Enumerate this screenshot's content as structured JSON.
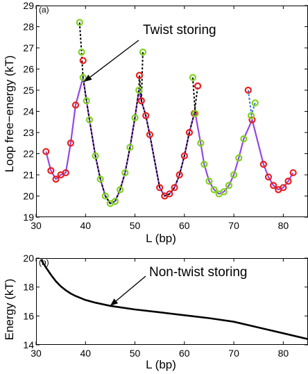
{
  "chart_data": [
    {
      "type": "line",
      "panel_label": "(a)",
      "xlabel": "L (bp)",
      "ylabel": "Loop free−energy (kT)",
      "xlim": [
        30,
        85
      ],
      "ylim": [
        19,
        29
      ],
      "xticks": [
        30,
        40,
        50,
        60,
        70,
        80
      ],
      "yticks": [
        19,
        20,
        21,
        22,
        23,
        24,
        25,
        26,
        27,
        28,
        29
      ],
      "grid": false,
      "annotation": {
        "text": "Twist storing",
        "x": 39.7,
        "y": 25.4
      },
      "colors": {
        "red_markers": "#e8201c",
        "green_markers": "#7ed321",
        "purple_line": "#9448e0",
        "dashed_black": "#000000",
        "dashed_blue": "#2f6fd8"
      },
      "series": [
        {
          "marker": "red-circle",
          "x": [
            32,
            33,
            34,
            35,
            36,
            37,
            38,
            39.5,
            50.9,
            51.3,
            52.2,
            53,
            55,
            56,
            57,
            58,
            59,
            60,
            61,
            62,
            62.7,
            72.9,
            73.7,
            76,
            77,
            78,
            79,
            80,
            81,
            82
          ],
          "y": [
            22.1,
            21.2,
            20.8,
            21.0,
            21.1,
            22.5,
            24.3,
            26.4,
            25.7,
            24.5,
            23.8,
            22.9,
            20.4,
            20.0,
            20.1,
            20.4,
            21.0,
            21.9,
            23.0,
            23.9,
            25.2,
            25.0,
            23.6,
            21.5,
            20.9,
            20.5,
            20.3,
            20.4,
            20.7,
            21.1
          ]
        },
        {
          "marker": "green-circle",
          "x": [
            38.8,
            39.2,
            39.5,
            40.2,
            40.8,
            42,
            43,
            44,
            45,
            46,
            47,
            48,
            49,
            50,
            50.8,
            51.6,
            61.7,
            62.2,
            63.3,
            64,
            65,
            66,
            67,
            68,
            69,
            70,
            71,
            72,
            73.5,
            74.3
          ],
          "y": [
            28.2,
            26.8,
            25.6,
            24.5,
            23.6,
            21.9,
            20.8,
            20.0,
            19.65,
            19.75,
            20.3,
            21.1,
            22.3,
            23.7,
            25.0,
            26.8,
            25.6,
            23.9,
            22.5,
            21.5,
            20.7,
            20.3,
            20.1,
            20.2,
            20.5,
            21.0,
            21.8,
            22.7,
            23.8,
            24.4
          ]
        },
        {
          "style": "solid",
          "color": "purple",
          "x": [
            32,
            33,
            34,
            35,
            36,
            37,
            38,
            39.5,
            40.2,
            40.8,
            42,
            43,
            44,
            45,
            46,
            47,
            48,
            49,
            50,
            50.8,
            51.3,
            52.2,
            53,
            55,
            56,
            57,
            58,
            59,
            60,
            61,
            62,
            62.2,
            63.3,
            64,
            65,
            66,
            67,
            68,
            69,
            70,
            71,
            72,
            73.7,
            76,
            77,
            78,
            79,
            80,
            81,
            82
          ],
          "y": [
            22.1,
            21.2,
            20.8,
            21.0,
            21.1,
            22.5,
            24.3,
            25.6,
            24.5,
            23.6,
            21.9,
            20.8,
            20.0,
            19.65,
            19.75,
            20.3,
            21.1,
            22.3,
            23.7,
            25.0,
            24.5,
            23.8,
            22.9,
            20.4,
            20.0,
            20.1,
            20.4,
            21.0,
            21.9,
            23.0,
            23.9,
            23.9,
            22.5,
            21.5,
            20.7,
            20.3,
            20.1,
            20.2,
            20.5,
            21.0,
            21.8,
            22.7,
            23.6,
            21.5,
            20.9,
            20.5,
            20.3,
            20.4,
            20.7,
            21.1
          ]
        },
        {
          "style": "dashed",
          "color": "black",
          "x": [
            38.8,
            39.2,
            39.5,
            40.2,
            40.8,
            42,
            43,
            44,
            45,
            46,
            47,
            48,
            49,
            50,
            50.8,
            50.9,
            51.3,
            52.2,
            53,
            55,
            56,
            57,
            58,
            59,
            60,
            61,
            62,
            62.7
          ],
          "y": [
            28.2,
            26.8,
            25.6,
            24.5,
            23.6,
            21.9,
            20.8,
            20.0,
            19.65,
            19.75,
            20.3,
            21.1,
            22.3,
            23.7,
            25.0,
            25.7,
            24.5,
            23.8,
            22.9,
            20.4,
            20.0,
            20.1,
            20.4,
            21.0,
            21.9,
            23.0,
            23.9,
            25.2
          ]
        },
        {
          "style": "dashed",
          "color": "black",
          "x": [
            51.6,
            51.3
          ],
          "y": [
            26.8,
            24.5
          ]
        },
        {
          "style": "dashed",
          "color": "black",
          "x": [
            61.7,
            62.2
          ],
          "y": [
            25.6,
            23.9
          ]
        },
        {
          "style": "dashed",
          "color": "blue",
          "x": [
            72.9,
            73.7
          ],
          "y": [
            25.0,
            23.6
          ]
        },
        {
          "style": "dashed",
          "color": "blue",
          "x": [
            74.3,
            73.5
          ],
          "y": [
            24.4,
            23.8
          ]
        }
      ]
    },
    {
      "type": "line",
      "panel_label": "(b)",
      "xlabel": "L (bp)",
      "ylabel": "Energy (kT)",
      "xlim": [
        30,
        85
      ],
      "ylim": [
        14,
        20
      ],
      "xticks": [
        30,
        40,
        50,
        60,
        70,
        80
      ],
      "yticks": [
        14,
        16,
        18,
        20
      ],
      "grid": false,
      "annotation": {
        "text": "Non-twist storing",
        "x": 45,
        "y": 16.7
      },
      "series": [
        {
          "style": "solid",
          "color": "black",
          "x": [
            31,
            32,
            33,
            34,
            35,
            36,
            37,
            38,
            40,
            42,
            45,
            50,
            55,
            60,
            65,
            70,
            75,
            80,
            85
          ],
          "y": [
            19.9,
            19.35,
            18.85,
            18.4,
            18.05,
            17.78,
            17.55,
            17.38,
            17.1,
            16.92,
            16.7,
            16.45,
            16.25,
            16.05,
            15.85,
            15.6,
            15.2,
            14.8,
            14.4
          ]
        }
      ]
    }
  ]
}
